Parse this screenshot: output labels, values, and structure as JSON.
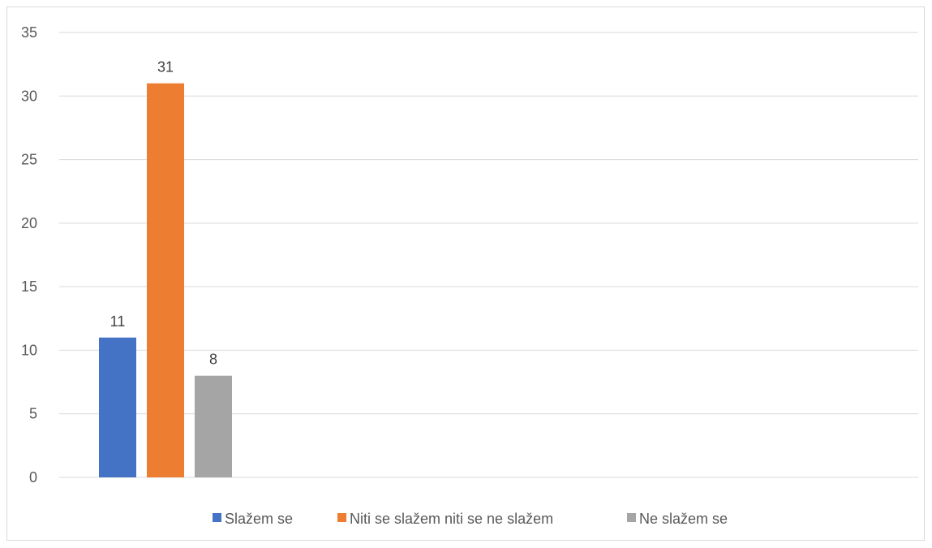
{
  "chart_data": {
    "type": "bar",
    "title": "",
    "xlabel": "",
    "ylabel": "",
    "ylim": [
      0,
      35
    ],
    "y_ticks": [
      "0",
      "5",
      "10",
      "15",
      "20",
      "25",
      "30",
      "35"
    ],
    "grid": true,
    "legend_position": "bottom",
    "series": [
      {
        "name": "Slažem se",
        "values": [
          11
        ],
        "color": "#4472c4"
      },
      {
        "name": "Niti se slažem niti se ne slažem",
        "values": [
          31
        ],
        "color": "#ed7d31"
      },
      {
        "name": "Ne slažem se",
        "values": [
          8
        ],
        "color": "#a5a5a5"
      }
    ],
    "data_labels": [
      "11",
      "31",
      "8"
    ]
  }
}
